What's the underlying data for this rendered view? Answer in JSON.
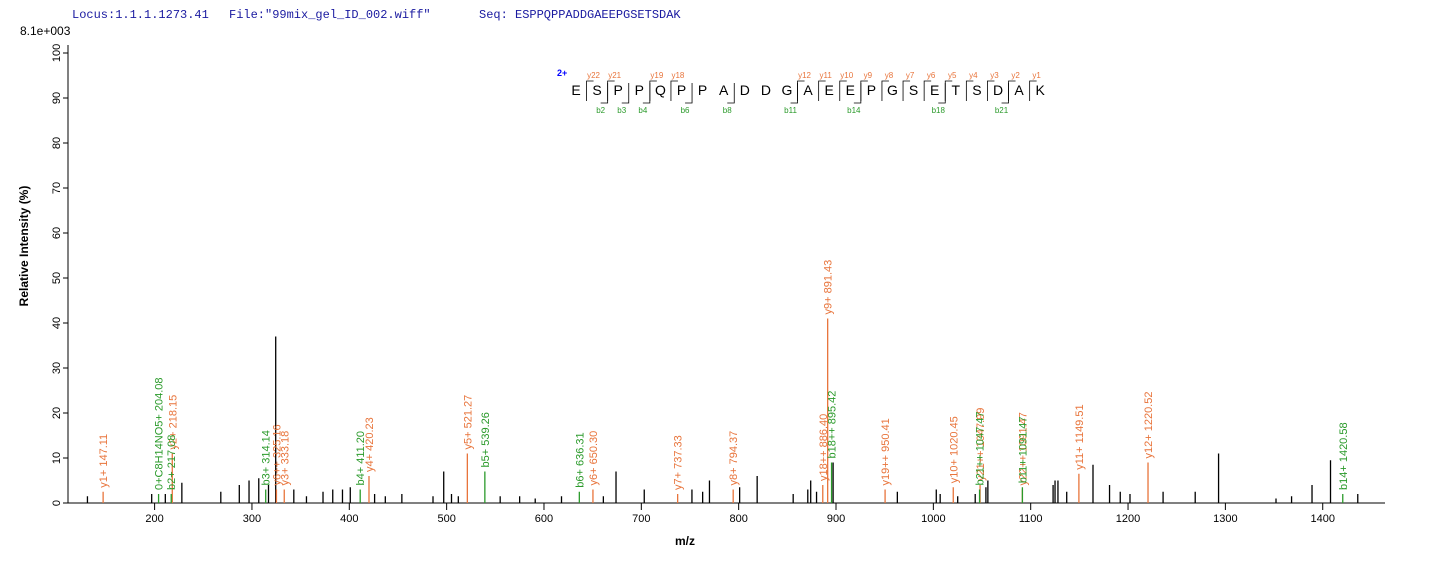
{
  "chart_data": {
    "type": "spectrum",
    "header": {
      "locus": "Locus:1.1.1.1273.41",
      "file": "File:\"99mix_gel_ID_002.wiff\"",
      "seq": "Seq: ESPPQPPADDGAEEPGSETSDAK"
    },
    "scale_label": "8.1e+003",
    "y_label": "Relative  Intensity (%)",
    "x_label": "m/z",
    "xlim": [
      110,
      1465
    ],
    "ylim": [
      0,
      100
    ],
    "xticks": [
      200,
      300,
      400,
      500,
      600,
      700,
      800,
      900,
      1000,
      1100,
      1200,
      1300,
      1400
    ],
    "yticks": [
      0,
      10,
      20,
      30,
      40,
      50,
      60,
      70,
      80,
      90,
      100
    ],
    "series": [
      {
        "color": "#000000",
        "x": [
          131,
          197,
          211,
          228,
          268,
          287,
          297,
          307,
          317,
          324.4,
          343,
          356,
          373,
          383,
          393,
          401,
          426,
          437,
          454,
          486,
          497,
          505,
          512,
          555,
          575,
          591,
          618,
          661,
          674,
          703,
          752,
          763,
          770,
          801,
          819,
          856,
          871,
          874,
          880,
          897,
          963,
          1003,
          1007,
          1025,
          1043,
          1054,
          1056,
          1123,
          1125,
          1128,
          1137,
          1164,
          1181,
          1192,
          1202,
          1236,
          1269,
          1293,
          1352,
          1368,
          1389,
          1408,
          1436
        ],
        "values": [
          1.5,
          2,
          2,
          4.5,
          2.5,
          4,
          5,
          5.5,
          4,
          37,
          3,
          1.5,
          2.5,
          3,
          3,
          3.5,
          2,
          1.5,
          2,
          1.5,
          7,
          2,
          1.5,
          1.5,
          1.5,
          1,
          1.5,
          1.5,
          7,
          3,
          3,
          2.5,
          5,
          3.5,
          6,
          2,
          3,
          5,
          2.5,
          9,
          2.5,
          3,
          2,
          1.5,
          2,
          3.5,
          5,
          4,
          5,
          5,
          2.5,
          8.5,
          4,
          2.5,
          2,
          2.5,
          2.5,
          11,
          1,
          1.5,
          4,
          9.5,
          2
        ]
      },
      {
        "color": "#e8743b",
        "x": [
          147.11,
          218.15,
          325.16,
          333.18,
          420.23,
          521.27,
          650.3,
          737.33,
          794.37,
          886.4,
          891.43,
          950.41,
          1020.45,
          1047.99,
          1091.47,
          1149.51,
          1220.52
        ],
        "values": [
          2.5,
          11,
          3,
          3,
          6,
          11,
          3,
          2,
          3,
          4,
          41,
          3,
          3.5,
          4,
          3,
          6.5,
          9
        ],
        "labels": [
          "y1+ 147.11",
          "y2+ 218.15",
          "y6++ 325.16",
          "y3+ 333.18",
          "y4+ 420.23",
          "y5+ 521.27",
          "y6+ 650.30",
          "y7+ 737.33",
          "y8+ 794.37",
          "y18++ 886.40",
          "y9+ 891.43",
          "y19++ 950.41",
          "y10+ 1020.45",
          "y21++ 1047.99",
          "y22++ 1091.47",
          "y11+ 1149.51",
          "y12+ 1220.52"
        ]
      },
      {
        "color": "#2a9a2a",
        "x": [
          204.08,
          217.08,
          314.14,
          411.2,
          539.26,
          636.31,
          895.42,
          1047.47,
          1091.47,
          1420.58
        ],
        "values": [
          2,
          2,
          3,
          3,
          7,
          2.5,
          9,
          3,
          3.5,
          2
        ],
        "labels": [
          "0+C8H14NO5+ 204.08",
          "b2+ 217.08",
          "b3+ 314.14",
          "b4+ 411.20",
          "b5+ 539.26",
          "b6+ 636.31",
          "b18++ 895.42",
          "b21++ 1047.47",
          "b11+ 1091.47",
          "b14+ 1420.58"
        ]
      }
    ],
    "sequence": {
      "charge": "2+",
      "charge_color": "#0000ff",
      "residues": [
        "E",
        "S",
        "P",
        "P",
        "Q",
        "P",
        "P",
        "A",
        "D",
        "D",
        "G",
        "A",
        "E",
        "E",
        "P",
        "G",
        "S",
        "E",
        "T",
        "S",
        "D",
        "A",
        "K"
      ],
      "y_ions": [
        "y22",
        "y21",
        "y19",
        "y18",
        "y12",
        "y11",
        "y10",
        "y9",
        "y8",
        "y7",
        "y6",
        "y5",
        "y4",
        "y3",
        "y2",
        "y1"
      ],
      "b_ions": [
        "b2",
        "b3",
        "b4",
        "b6",
        "b8",
        "b11",
        "b14",
        "b18",
        "b21"
      ],
      "y_color": "#e8743b",
      "b_color": "#2a9a2a"
    }
  }
}
